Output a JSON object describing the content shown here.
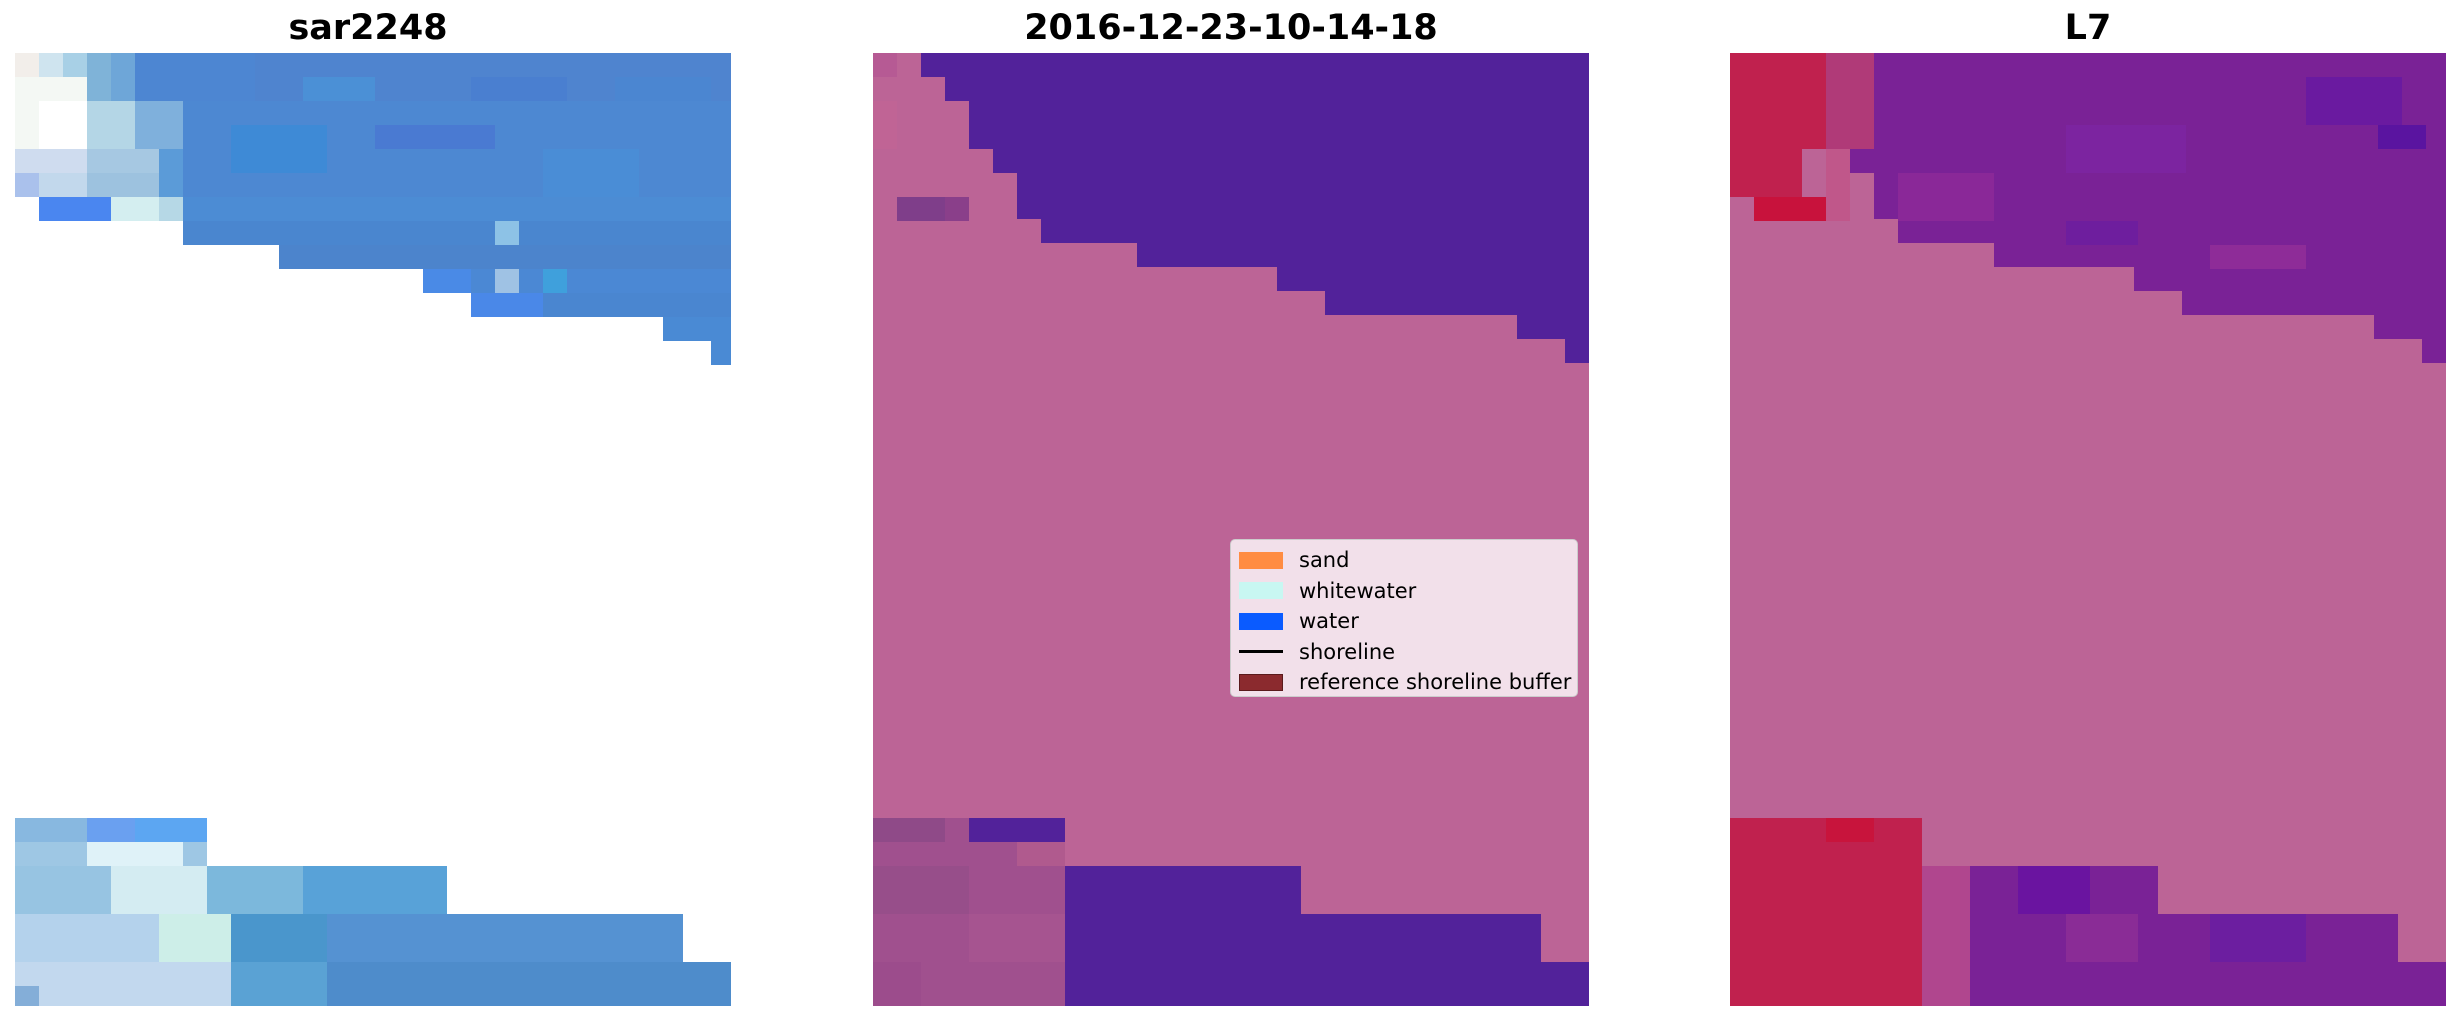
{
  "panels": {
    "left": {
      "title": "sar2248"
    },
    "middle": {
      "title": "2016-12-23-10-14-18"
    },
    "right": {
      "title": "L7"
    }
  },
  "legend": {
    "items": [
      {
        "label": "sand",
        "color": "#ff8c42",
        "kind": "patch"
      },
      {
        "label": "whitewater",
        "color": "#c8f7f2",
        "kind": "patch"
      },
      {
        "label": "water",
        "color": "#0a5bff",
        "kind": "patch"
      },
      {
        "label": "shoreline",
        "color": "#000000",
        "kind": "line"
      },
      {
        "label": "reference shoreline buffer",
        "color": "#8b2a2e",
        "kind": "patch"
      }
    ]
  },
  "colors": {
    "land_pink": "#bc6496",
    "water_purple": "#52229a",
    "red_mask": "#c0214e",
    "violet_mask": "#7a2296",
    "rgb_water_blue": "#4a88d4"
  }
}
